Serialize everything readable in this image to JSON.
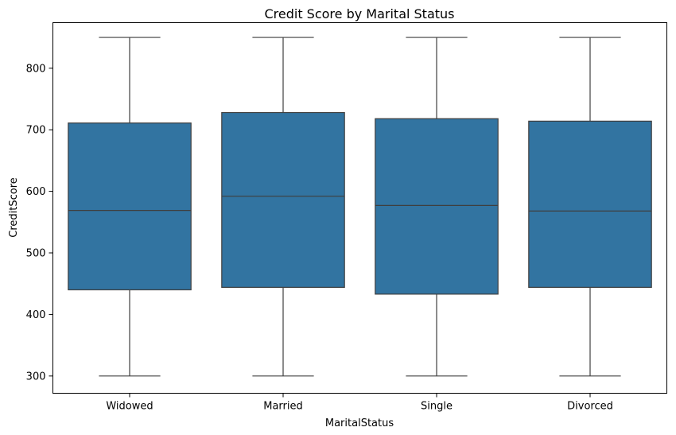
{
  "chart_data": {
    "type": "box",
    "title": "Credit Score by Marital Status",
    "xlabel": "MaritalStatus",
    "ylabel": "CreditScore",
    "ylim": [
      272,
      874
    ],
    "yticks": [
      300,
      400,
      500,
      600,
      700,
      800
    ],
    "grid": false,
    "categories": [
      "Widowed",
      "Married",
      "Single",
      "Divorced"
    ],
    "series": [
      {
        "boxes": [
          {
            "category": "Widowed",
            "min": 300,
            "q1": 440,
            "median": 569,
            "q3": 711,
            "max": 850
          },
          {
            "category": "Married",
            "min": 300,
            "q1": 444,
            "median": 592,
            "q3": 728,
            "max": 850
          },
          {
            "category": "Single",
            "min": 300,
            "q1": 433,
            "median": 577,
            "q3": 718,
            "max": 850
          },
          {
            "category": "Divorced",
            "min": 300,
            "q1": 444,
            "median": 568,
            "q3": 714,
            "max": 850
          }
        ]
      }
    ],
    "colors": {
      "box_fill": "#3274a1",
      "line": "#3f3f3f",
      "axis": "#000000"
    }
  }
}
